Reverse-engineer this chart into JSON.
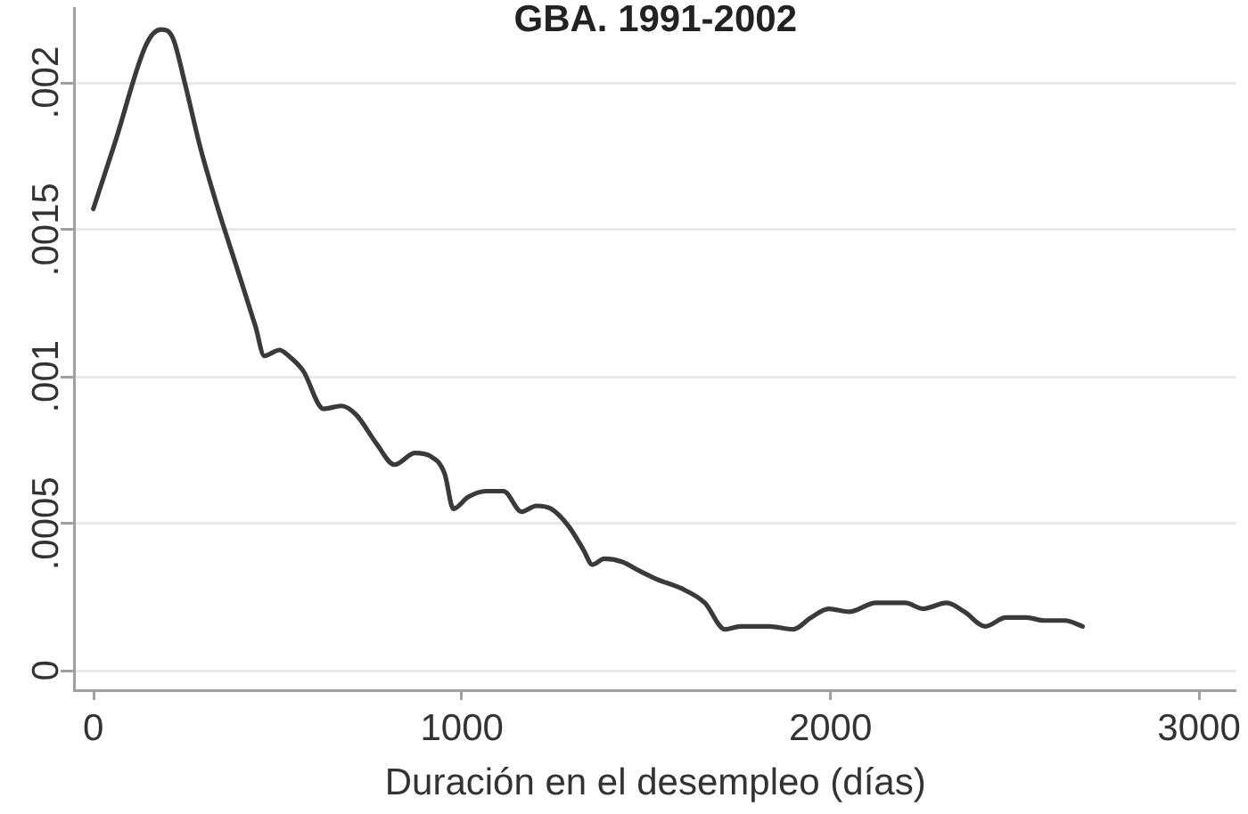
{
  "chart_data": {
    "type": "line",
    "title": "GBA. 1991-2002",
    "xlabel": "Duración en el desempleo (días)",
    "x": [
      0,
      60,
      144,
      184,
      216,
      248,
      290,
      336,
      392,
      440,
      464,
      505,
      530,
      569,
      625,
      673,
      713,
      769,
      817,
      873,
      913,
      953,
      977,
      1017,
      1065,
      1113,
      1162,
      1202,
      1242,
      1290,
      1330,
      1354,
      1386,
      1434,
      1480,
      1530,
      1594,
      1659,
      1714,
      1755,
      1835,
      1899,
      1947,
      1995,
      2051,
      2123,
      2203,
      2251,
      2315,
      2363,
      2420,
      2476,
      2532,
      2580,
      2636,
      2684
    ],
    "values": [
      0.00157,
      0.0018,
      0.00213,
      0.00218,
      0.00215,
      0.002,
      0.00178,
      0.00158,
      0.00136,
      0.00117,
      0.00107,
      0.00109,
      0.00107,
      0.00102,
      0.00089,
      0.0009,
      0.00087,
      0.00077,
      0.0007,
      0.00074,
      0.00073,
      0.00067,
      0.00055,
      0.00059,
      0.00061,
      0.00061,
      0.00054,
      0.00056,
      0.00055,
      0.00049,
      0.00041,
      0.00036,
      0.00038,
      0.00037,
      0.00034,
      0.00031,
      0.00028,
      0.00023,
      0.00014,
      0.00015,
      0.00015,
      0.00014,
      0.00018,
      0.00021,
      0.0002,
      0.00023,
      0.00023,
      0.00021,
      0.00023,
      0.0002,
      0.00015,
      0.00018,
      0.00018,
      0.00017,
      0.00017,
      0.00015
    ],
    "color": "#3a3a3a",
    "xlim": [
      -50,
      3100
    ],
    "xticks": [
      0,
      1000,
      2000,
      3000
    ],
    "ylim": [
      -7e-05,
      0.00225
    ],
    "yticks": [
      0,
      {
        "value": 0.0005,
        "label": ".0005"
      },
      {
        "value": 0.001,
        "label": ".001"
      },
      {
        "value": 0.0015,
        "label": ".0015"
      },
      {
        "value": 0.002,
        "label": ".002"
      }
    ],
    "grid": "y",
    "marker": "none",
    "line_style": "solid"
  }
}
